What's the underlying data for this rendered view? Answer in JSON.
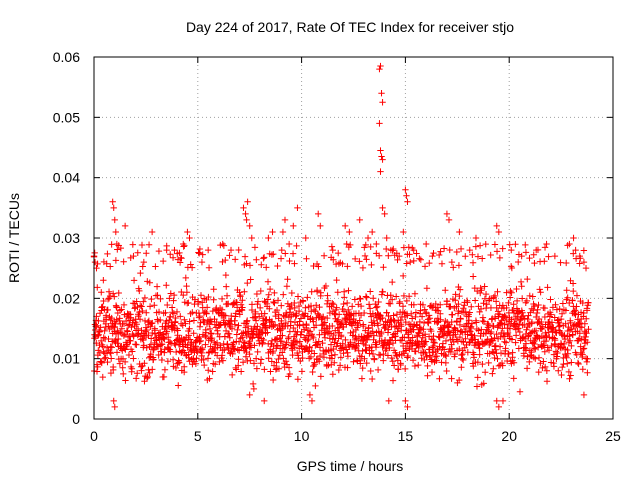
{
  "chart_data": {
    "type": "scatter",
    "title": "Day 224 of 2017, Rate Of TEC Index for receiver stjo",
    "xlabel": "GPS time / hours",
    "ylabel": "ROTI / TECUs",
    "xlim": [
      0,
      25
    ],
    "ylim": [
      0,
      0.06
    ],
    "x_ticks": [
      "0",
      "5",
      "10",
      "15",
      "20",
      "25"
    ],
    "y_ticks": [
      "0",
      "0.01",
      "0.02",
      "0.03",
      "0.04",
      "0.05",
      "0.06"
    ],
    "x_tick_values": [
      0,
      5,
      10,
      15,
      20,
      25
    ],
    "y_tick_values": [
      0,
      0.01,
      0.02,
      0.03,
      0.04,
      0.05,
      0.06
    ],
    "grid": true,
    "marker": "+",
    "color": "#ff0000",
    "series": [
      {
        "name": "ROTI",
        "points": [
          [
            0.0,
            0.027
          ],
          [
            0.05,
            0.026
          ],
          [
            0.12,
            0.025
          ],
          [
            0.35,
            0.021
          ],
          [
            0.45,
            0.023
          ],
          [
            0.9,
            0.036
          ],
          [
            0.95,
            0.035
          ],
          [
            1.0,
            0.033
          ],
          [
            1.05,
            0.031
          ],
          [
            1.1,
            0.029
          ],
          [
            0.95,
            0.003
          ],
          [
            1.0,
            0.002
          ],
          [
            1.5,
            0.032
          ],
          [
            1.9,
            0.027
          ],
          [
            2.4,
            0.026
          ],
          [
            2.8,
            0.031
          ],
          [
            3.5,
            0.028
          ],
          [
            4.3,
            0.029
          ],
          [
            4.5,
            0.031
          ],
          [
            4.6,
            0.03
          ],
          [
            5.2,
            0.026
          ],
          [
            5.5,
            0.028
          ],
          [
            6.2,
            0.029
          ],
          [
            6.6,
            0.028
          ],
          [
            7.2,
            0.035
          ],
          [
            7.3,
            0.034
          ],
          [
            7.35,
            0.033
          ],
          [
            7.4,
            0.036
          ],
          [
            7.5,
            0.032
          ],
          [
            7.6,
            0.03
          ],
          [
            7.5,
            0.004
          ],
          [
            7.7,
            0.005
          ],
          [
            8.2,
            0.003
          ],
          [
            8.4,
            0.03
          ],
          [
            8.6,
            0.031
          ],
          [
            9.1,
            0.031
          ],
          [
            9.2,
            0.033
          ],
          [
            9.4,
            0.029
          ],
          [
            9.6,
            0.032
          ],
          [
            9.8,
            0.035
          ],
          [
            10.2,
            0.03
          ],
          [
            10.4,
            0.004
          ],
          [
            10.5,
            0.003
          ],
          [
            10.8,
            0.034
          ],
          [
            10.9,
            0.032
          ],
          [
            11.5,
            0.028
          ],
          [
            12.1,
            0.032
          ],
          [
            12.3,
            0.031
          ],
          [
            12.8,
            0.033
          ],
          [
            13.2,
            0.03
          ],
          [
            13.4,
            0.031
          ],
          [
            13.6,
            0.029
          ],
          [
            13.75,
            0.058
          ],
          [
            13.8,
            0.0585
          ],
          [
            13.85,
            0.054
          ],
          [
            13.9,
            0.0525
          ],
          [
            13.75,
            0.049
          ],
          [
            13.8,
            0.0445
          ],
          [
            13.85,
            0.0435
          ],
          [
            13.9,
            0.043
          ],
          [
            13.8,
            0.041
          ],
          [
            13.9,
            0.035
          ],
          [
            14.0,
            0.034
          ],
          [
            14.1,
            0.03
          ],
          [
            14.3,
            0.028
          ],
          [
            14.2,
            0.003
          ],
          [
            14.7,
            0.027
          ],
          [
            14.9,
            0.031
          ],
          [
            15.0,
            0.038
          ],
          [
            15.05,
            0.037
          ],
          [
            15.1,
            0.036
          ],
          [
            15.0,
            0.003
          ],
          [
            15.1,
            0.002
          ],
          [
            15.4,
            0.028
          ],
          [
            16.0,
            0.029
          ],
          [
            16.3,
            0.027
          ],
          [
            17.0,
            0.034
          ],
          [
            17.1,
            0.033
          ],
          [
            17.6,
            0.031
          ],
          [
            18.1,
            0.028
          ],
          [
            18.4,
            0.03
          ],
          [
            19.4,
            0.032
          ],
          [
            19.5,
            0.031
          ],
          [
            19.4,
            0.003
          ],
          [
            19.5,
            0.002
          ],
          [
            19.7,
            0.003
          ],
          [
            20.1,
            0.028
          ],
          [
            20.6,
            0.027
          ],
          [
            21.3,
            0.028
          ],
          [
            21.8,
            0.029
          ],
          [
            22.2,
            0.027
          ],
          [
            22.9,
            0.029
          ],
          [
            23.1,
            0.03
          ],
          [
            23.2,
            0.028
          ],
          [
            23.4,
            0.027
          ],
          [
            23.6,
            0.026
          ],
          [
            23.7,
            0.025
          ],
          [
            23.6,
            0.004
          ],
          [
            23.75,
            0.018
          ]
        ],
        "dense_band": {
          "x_start": 0.0,
          "x_end": 23.8,
          "lower": 0.004,
          "upper": 0.025,
          "center": 0.014
        }
      }
    ]
  }
}
